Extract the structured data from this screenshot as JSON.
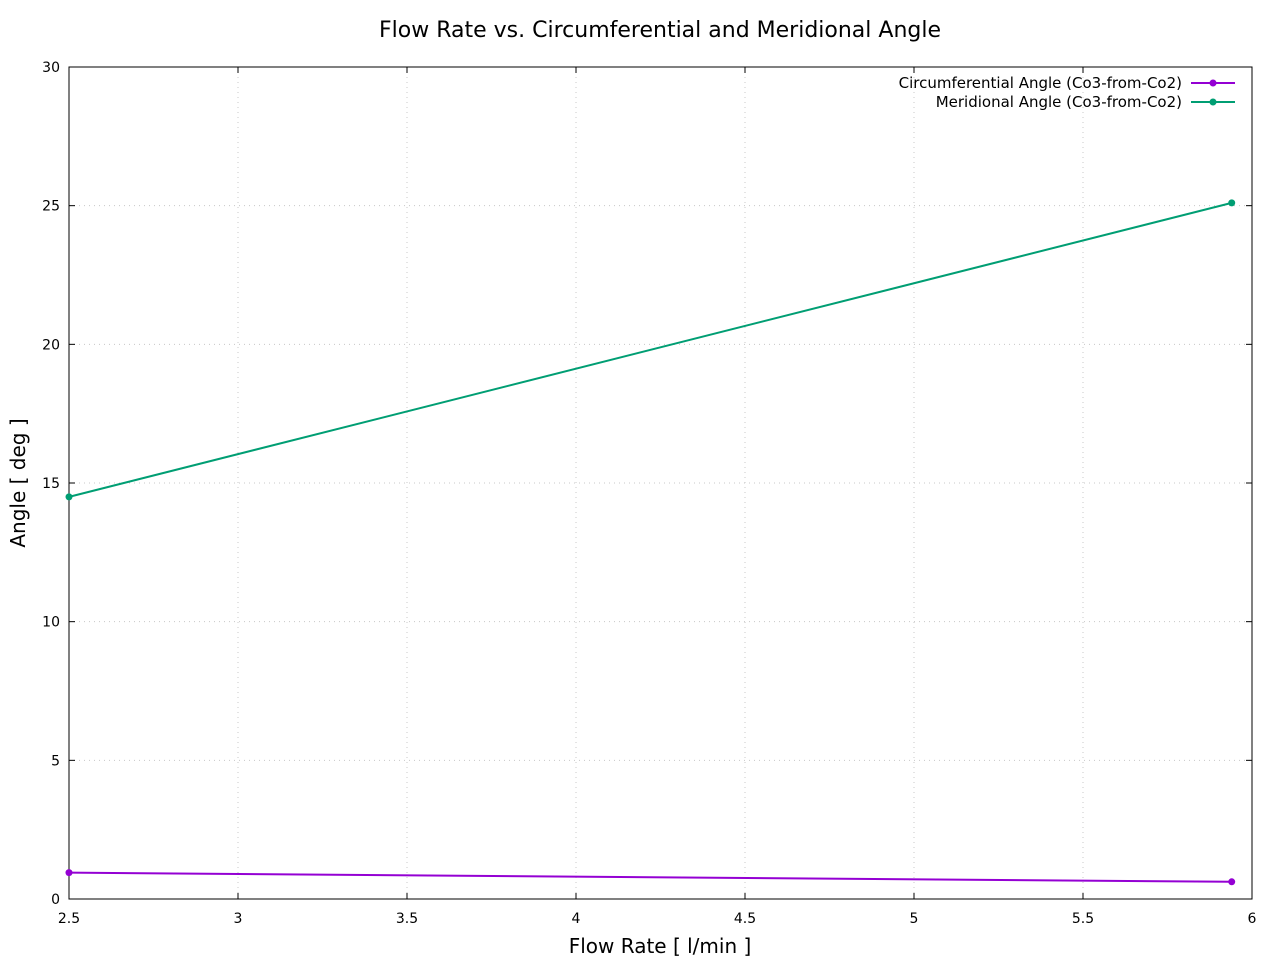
{
  "chart_data": {
    "type": "line",
    "title": "Flow Rate vs. Circumferential and Meridional Angle",
    "xlabel": "Flow Rate [ l/min ]",
    "ylabel": "Angle [ deg ]",
    "xlim": [
      2.5,
      6
    ],
    "ylim": [
      0,
      30
    ],
    "xticks": [
      2.5,
      3,
      3.5,
      4,
      4.5,
      5,
      5.5,
      6
    ],
    "xtick_labels": [
      "2.5",
      "3",
      "3.5",
      "4",
      "4.5",
      "5",
      "5.5",
      "6"
    ],
    "yticks": [
      0,
      5,
      10,
      15,
      20,
      25,
      30
    ],
    "ytick_labels": [
      "0",
      "5",
      "10",
      "15",
      "20",
      "25",
      "30"
    ],
    "grid": true,
    "legend_position": "top-right",
    "series": [
      {
        "name": "Circumferential Angle (Co3-from-Co2)",
        "color": "#9400d3",
        "x": [
          2.5,
          5.94
        ],
        "y": [
          0.95,
          0.62
        ]
      },
      {
        "name": "Meridional Angle (Co3-from-Co2)",
        "color": "#009e73",
        "x": [
          2.5,
          5.94
        ],
        "y": [
          14.5,
          25.1
        ]
      }
    ]
  }
}
